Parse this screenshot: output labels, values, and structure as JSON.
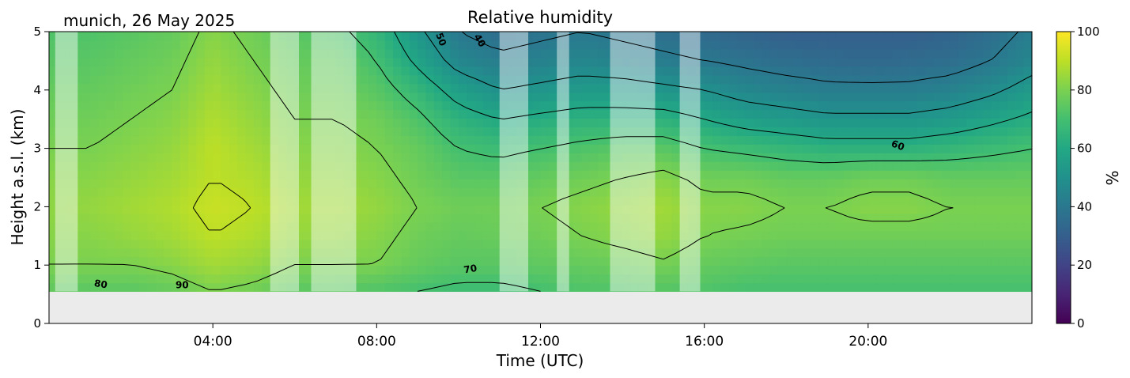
{
  "chart_data": {
    "type": "heatmap",
    "title": "Relative humidity",
    "subtitle": "munich, 26 May 2025",
    "xlabel": "Time (UTC)",
    "ylabel": "Height a.s.l. (km)",
    "xlim": [
      0,
      24
    ],
    "ylim": [
      0,
      5
    ],
    "x_ticks": [
      {
        "value": 4,
        "label": "04:00"
      },
      {
        "value": 8,
        "label": "08:00"
      },
      {
        "value": 12,
        "label": "12:00"
      },
      {
        "value": 16,
        "label": "16:00"
      },
      {
        "value": 20,
        "label": "20:00"
      }
    ],
    "y_ticks": [
      {
        "value": 0,
        "label": "0"
      },
      {
        "value": 1,
        "label": "1"
      },
      {
        "value": 2,
        "label": "2"
      },
      {
        "value": 3,
        "label": "3"
      },
      {
        "value": 4,
        "label": "4"
      },
      {
        "value": 5,
        "label": "5"
      }
    ],
    "colorbar": {
      "label": "%",
      "colormap": "viridis",
      "range": [
        0,
        100
      ],
      "ticks": [
        {
          "value": 0,
          "label": "0"
        },
        {
          "value": 20,
          "label": "20"
        },
        {
          "value": 40,
          "label": "40"
        },
        {
          "value": 60,
          "label": "60"
        },
        {
          "value": 80,
          "label": "80"
        },
        {
          "value": 100,
          "label": "100"
        }
      ]
    },
    "no_data_below_km": 0.55,
    "no_data_color": "#ebebeb",
    "masked_time_ranges": [
      [
        0.15,
        0.7
      ],
      [
        5.4,
        6.1
      ],
      [
        6.4,
        7.5
      ],
      [
        11.0,
        11.7
      ],
      [
        12.4,
        12.7
      ],
      [
        13.7,
        14.8
      ],
      [
        15.4,
        15.9
      ]
    ],
    "contour_levels": [
      40,
      50,
      60,
      70,
      80,
      90
    ],
    "contour_labels": [
      {
        "text": "80",
        "x": 1.25,
        "y": 0.62,
        "rotate": 10
      },
      {
        "text": "90",
        "x": 3.25,
        "y": 0.6,
        "rotate": 0
      },
      {
        "text": "70",
        "x": 10.3,
        "y": 0.88,
        "rotate": -10
      },
      {
        "text": "50",
        "x": 9.5,
        "y": 4.85,
        "rotate": 70
      },
      {
        "text": "40",
        "x": 10.45,
        "y": 4.82,
        "rotate": 60
      },
      {
        "text": "60",
        "x": 20.7,
        "y": 3.0,
        "rotate": 20
      }
    ],
    "humidity_field": {
      "times": [
        0,
        1,
        2,
        3,
        4,
        5,
        6,
        7,
        8,
        9,
        10,
        11,
        12,
        13,
        14,
        15,
        16,
        17,
        18,
        19,
        20,
        21,
        22,
        23,
        24
      ],
      "heights": [
        0.55,
        1,
        1.5,
        2,
        2.5,
        3,
        3.5,
        4,
        4.5,
        5
      ],
      "values": [
        [
          75,
          74,
          74,
          76,
          80,
          78,
          74,
          74,
          72,
          70,
          68,
          68,
          70,
          72,
          72,
          73,
          72,
          70,
          70,
          70,
          70,
          70,
          70,
          70,
          70
        ],
        [
          80,
          80,
          80,
          82,
          86,
          84,
          80,
          80,
          80,
          76,
          74,
          74,
          75,
          76,
          77,
          79,
          76,
          75,
          74,
          74,
          74,
          74,
          74,
          74,
          74
        ],
        [
          82,
          82,
          84,
          86,
          90,
          88,
          84,
          84,
          82,
          78,
          76,
          77,
          78,
          80,
          82,
          84,
          80,
          79,
          78,
          78,
          78,
          78,
          78,
          78,
          78
        ],
        [
          83,
          84,
          86,
          88,
          92,
          90,
          86,
          86,
          84,
          80,
          78,
          78,
          80,
          82,
          84,
          86,
          82,
          82,
          80,
          80,
          82,
          82,
          80,
          80,
          80
        ],
        [
          82,
          82,
          84,
          86,
          90,
          88,
          84,
          84,
          82,
          78,
          74,
          74,
          76,
          78,
          80,
          82,
          78,
          78,
          76,
          76,
          78,
          78,
          76,
          76,
          76
        ],
        [
          80,
          80,
          82,
          84,
          90,
          86,
          82,
          82,
          80,
          76,
          70,
          68,
          70,
          72,
          74,
          74,
          70,
          68,
          66,
          64,
          64,
          64,
          66,
          68,
          70
        ],
        [
          78,
          78,
          80,
          82,
          88,
          84,
          80,
          80,
          78,
          72,
          64,
          60,
          62,
          64,
          64,
          64,
          60,
          56,
          54,
          52,
          52,
          52,
          54,
          58,
          62
        ],
        [
          76,
          76,
          78,
          80,
          86,
          82,
          78,
          78,
          74,
          66,
          56,
          50,
          52,
          54,
          54,
          52,
          50,
          46,
          44,
          42,
          42,
          42,
          44,
          48,
          54
        ],
        [
          74,
          74,
          76,
          78,
          84,
          80,
          76,
          76,
          70,
          58,
          46,
          42,
          44,
          46,
          44,
          42,
          40,
          38,
          36,
          35,
          34,
          35,
          36,
          40,
          46
        ],
        [
          72,
          72,
          74,
          76,
          82,
          78,
          74,
          72,
          66,
          52,
          40,
          36,
          38,
          40,
          38,
          36,
          34,
          32,
          30,
          30,
          30,
          30,
          32,
          36,
          42
        ]
      ]
    }
  }
}
